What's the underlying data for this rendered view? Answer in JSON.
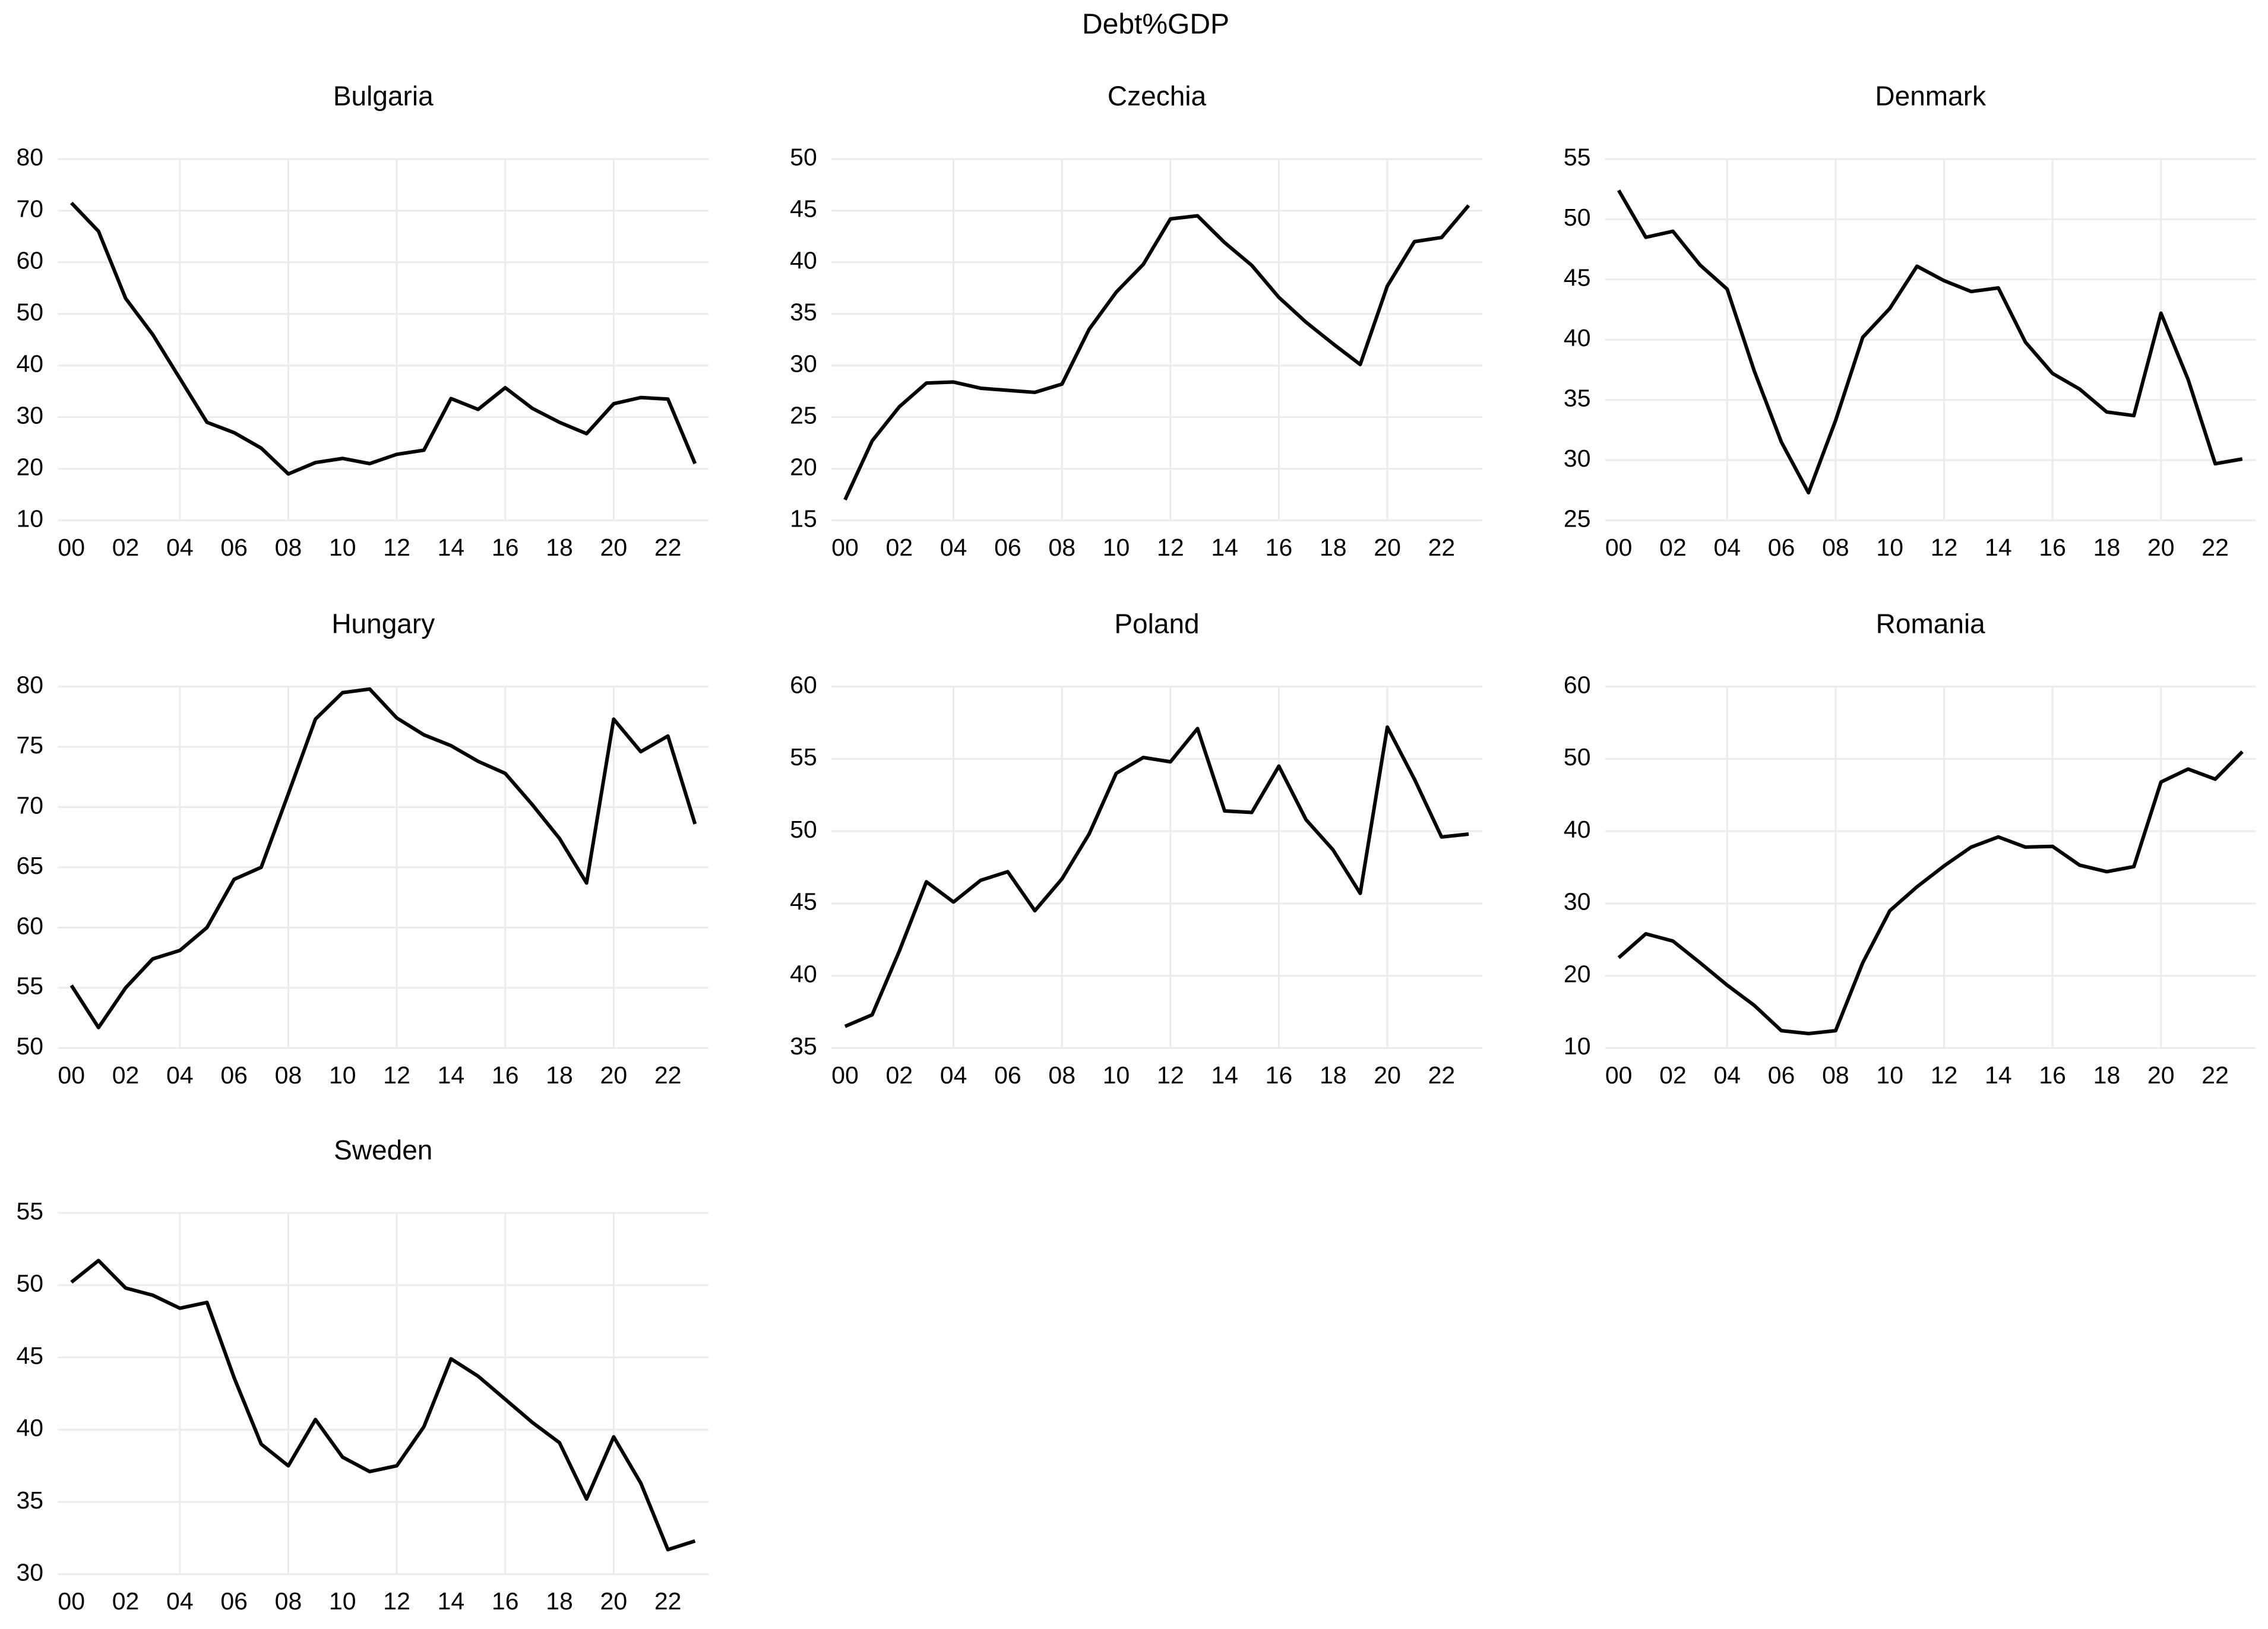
{
  "title": "Debt%GDP",
  "chart_data": [
    {
      "type": "line",
      "title": "Bulgaria",
      "color": "#000000",
      "grid": true,
      "x": [
        0,
        1,
        2,
        3,
        4,
        5,
        6,
        7,
        8,
        9,
        10,
        11,
        12,
        13,
        14,
        15,
        16,
        17,
        18,
        19,
        20,
        21,
        22,
        23
      ],
      "values": [
        71.5,
        66,
        53,
        46,
        37.5,
        29,
        27,
        24,
        19,
        21.2,
        22,
        21,
        22.8,
        23.6,
        33.6,
        31.5,
        35.7,
        31.7,
        29,
        26.8,
        32.6,
        33.8,
        33.5,
        21
      ],
      "xlim": [
        -0.5,
        23.5
      ],
      "xticks": [
        {
          "value": 0,
          "label": "00"
        },
        {
          "value": 2,
          "label": "02"
        },
        {
          "value": 4,
          "label": "04"
        },
        {
          "value": 6,
          "label": "06"
        },
        {
          "value": 8,
          "label": "08"
        },
        {
          "value": 10,
          "label": "10"
        },
        {
          "value": 12,
          "label": "12"
        },
        {
          "value": 14,
          "label": "14"
        },
        {
          "value": 16,
          "label": "16"
        },
        {
          "value": 18,
          "label": "18"
        },
        {
          "value": 20,
          "label": "20"
        },
        {
          "value": 22,
          "label": "22"
        }
      ],
      "ylim": [
        10,
        80
      ],
      "yticks": [
        10,
        20,
        30,
        40,
        50,
        60,
        70,
        80
      ]
    },
    {
      "type": "line",
      "title": "Czechia",
      "color": "#000000",
      "grid": true,
      "x": [
        0,
        1,
        2,
        3,
        4,
        5,
        6,
        7,
        8,
        9,
        10,
        11,
        12,
        13,
        14,
        15,
        16,
        17,
        18,
        19,
        20,
        21,
        22,
        23
      ],
      "values": [
        17,
        22.7,
        26,
        28.3,
        28.4,
        27.8,
        27.6,
        27.4,
        28.2,
        33.5,
        37.1,
        39.8,
        44.2,
        44.5,
        41.9,
        39.7,
        36.6,
        34.2,
        32.1,
        30.1,
        37.7,
        42,
        42.4,
        45.5
      ],
      "xlim": [
        -0.5,
        23.5
      ],
      "xticks": [
        {
          "value": 0,
          "label": "00"
        },
        {
          "value": 2,
          "label": "02"
        },
        {
          "value": 4,
          "label": "04"
        },
        {
          "value": 6,
          "label": "06"
        },
        {
          "value": 8,
          "label": "08"
        },
        {
          "value": 10,
          "label": "10"
        },
        {
          "value": 12,
          "label": "12"
        },
        {
          "value": 14,
          "label": "14"
        },
        {
          "value": 16,
          "label": "16"
        },
        {
          "value": 18,
          "label": "18"
        },
        {
          "value": 20,
          "label": "20"
        },
        {
          "value": 22,
          "label": "22"
        }
      ],
      "ylim": [
        15,
        50
      ],
      "yticks": [
        15,
        20,
        25,
        30,
        35,
        40,
        45,
        50
      ]
    },
    {
      "type": "line",
      "title": "Denmark",
      "color": "#000000",
      "grid": true,
      "x": [
        0,
        1,
        2,
        3,
        4,
        5,
        6,
        7,
        8,
        9,
        10,
        11,
        12,
        13,
        14,
        15,
        16,
        17,
        18,
        19,
        20,
        21,
        22,
        23
      ],
      "values": [
        52.4,
        48.5,
        49,
        46.2,
        44.2,
        37.4,
        31.5,
        27.3,
        33.3,
        40.2,
        42.6,
        46.1,
        44.9,
        44,
        44.3,
        39.8,
        37.2,
        35.9,
        34,
        33.7,
        42.2,
        36.7,
        29.7,
        30.1
      ],
      "xlim": [
        -0.5,
        23.5
      ],
      "xticks": [
        {
          "value": 0,
          "label": "00"
        },
        {
          "value": 2,
          "label": "02"
        },
        {
          "value": 4,
          "label": "04"
        },
        {
          "value": 6,
          "label": "06"
        },
        {
          "value": 8,
          "label": "08"
        },
        {
          "value": 10,
          "label": "10"
        },
        {
          "value": 12,
          "label": "12"
        },
        {
          "value": 14,
          "label": "14"
        },
        {
          "value": 16,
          "label": "16"
        },
        {
          "value": 18,
          "label": "18"
        },
        {
          "value": 20,
          "label": "20"
        },
        {
          "value": 22,
          "label": "22"
        }
      ],
      "ylim": [
        25,
        55
      ],
      "yticks": [
        25,
        30,
        35,
        40,
        45,
        50,
        55
      ]
    },
    {
      "type": "line",
      "title": "Hungary",
      "color": "#000000",
      "grid": true,
      "x": [
        0,
        1,
        2,
        3,
        4,
        5,
        6,
        7,
        8,
        9,
        10,
        11,
        12,
        13,
        14,
        15,
        16,
        17,
        18,
        19,
        20,
        21,
        22,
        23
      ],
      "values": [
        55.2,
        51.7,
        55,
        57.4,
        58.1,
        60,
        64,
        65,
        71.1,
        77.3,
        79.5,
        79.8,
        77.4,
        76,
        75.1,
        73.8,
        72.8,
        70.2,
        67.4,
        63.7,
        77.3,
        74.6,
        75.9,
        68.6
      ],
      "xlim": [
        -0.5,
        23.5
      ],
      "xticks": [
        {
          "value": 0,
          "label": "00"
        },
        {
          "value": 2,
          "label": "02"
        },
        {
          "value": 4,
          "label": "04"
        },
        {
          "value": 6,
          "label": "06"
        },
        {
          "value": 8,
          "label": "08"
        },
        {
          "value": 10,
          "label": "10"
        },
        {
          "value": 12,
          "label": "12"
        },
        {
          "value": 14,
          "label": "14"
        },
        {
          "value": 16,
          "label": "16"
        },
        {
          "value": 18,
          "label": "18"
        },
        {
          "value": 20,
          "label": "20"
        },
        {
          "value": 22,
          "label": "22"
        }
      ],
      "ylim": [
        50,
        80
      ],
      "yticks": [
        50,
        55,
        60,
        65,
        70,
        75,
        80
      ]
    },
    {
      "type": "line",
      "title": "Poland",
      "color": "#000000",
      "grid": true,
      "x": [
        0,
        1,
        2,
        3,
        4,
        5,
        6,
        7,
        8,
        9,
        10,
        11,
        12,
        13,
        14,
        15,
        16,
        17,
        18,
        19,
        20,
        21,
        22,
        23
      ],
      "values": [
        36.5,
        37.3,
        41.7,
        46.5,
        45.1,
        46.6,
        47.2,
        44.5,
        46.7,
        49.8,
        54,
        55.1,
        54.8,
        57.1,
        51.4,
        51.3,
        54.5,
        50.8,
        48.7,
        45.7,
        57.2,
        53.6,
        49.6,
        49.8
      ],
      "xlim": [
        -0.5,
        23.5
      ],
      "xticks": [
        {
          "value": 0,
          "label": "00"
        },
        {
          "value": 2,
          "label": "02"
        },
        {
          "value": 4,
          "label": "04"
        },
        {
          "value": 6,
          "label": "06"
        },
        {
          "value": 8,
          "label": "08"
        },
        {
          "value": 10,
          "label": "10"
        },
        {
          "value": 12,
          "label": "12"
        },
        {
          "value": 14,
          "label": "14"
        },
        {
          "value": 16,
          "label": "16"
        },
        {
          "value": 18,
          "label": "18"
        },
        {
          "value": 20,
          "label": "20"
        },
        {
          "value": 22,
          "label": "22"
        }
      ],
      "ylim": [
        35,
        60
      ],
      "yticks": [
        35,
        40,
        45,
        50,
        55,
        60
      ]
    },
    {
      "type": "line",
      "title": "Romania",
      "color": "#000000",
      "grid": true,
      "x": [
        0,
        1,
        2,
        3,
        4,
        5,
        6,
        7,
        8,
        9,
        10,
        11,
        12,
        13,
        14,
        15,
        16,
        17,
        18,
        19,
        20,
        21,
        22,
        23
      ],
      "values": [
        22.5,
        25.8,
        24.8,
        21.8,
        18.7,
        15.9,
        12.4,
        12,
        12.4,
        21.8,
        29,
        32.3,
        35.2,
        37.8,
        39.2,
        37.8,
        37.9,
        35.3,
        34.4,
        35.1,
        46.8,
        48.6,
        47.2,
        51
      ],
      "xlim": [
        -0.5,
        23.5
      ],
      "xticks": [
        {
          "value": 0,
          "label": "00"
        },
        {
          "value": 2,
          "label": "02"
        },
        {
          "value": 4,
          "label": "04"
        },
        {
          "value": 6,
          "label": "06"
        },
        {
          "value": 8,
          "label": "08"
        },
        {
          "value": 10,
          "label": "10"
        },
        {
          "value": 12,
          "label": "12"
        },
        {
          "value": 14,
          "label": "14"
        },
        {
          "value": 16,
          "label": "16"
        },
        {
          "value": 18,
          "label": "18"
        },
        {
          "value": 20,
          "label": "20"
        },
        {
          "value": 22,
          "label": "22"
        }
      ],
      "ylim": [
        10,
        60
      ],
      "yticks": [
        10,
        20,
        30,
        40,
        50,
        60
      ]
    },
    {
      "type": "line",
      "title": "Sweden",
      "color": "#000000",
      "grid": true,
      "x": [
        0,
        1,
        2,
        3,
        4,
        5,
        6,
        7,
        8,
        9,
        10,
        11,
        12,
        13,
        14,
        15,
        16,
        17,
        18,
        19,
        20,
        21,
        22,
        23
      ],
      "values": [
        50.2,
        51.7,
        49.8,
        49.3,
        48.4,
        48.8,
        43.6,
        39,
        37.5,
        40.7,
        38.1,
        37.1,
        37.5,
        40.2,
        44.9,
        43.7,
        42.1,
        40.5,
        39.1,
        35.2,
        39.5,
        36.3,
        31.7,
        32.3
      ],
      "xlim": [
        -0.5,
        23.5
      ],
      "xticks": [
        {
          "value": 0,
          "label": "00"
        },
        {
          "value": 2,
          "label": "02"
        },
        {
          "value": 4,
          "label": "04"
        },
        {
          "value": 6,
          "label": "06"
        },
        {
          "value": 8,
          "label": "08"
        },
        {
          "value": 10,
          "label": "10"
        },
        {
          "value": 12,
          "label": "12"
        },
        {
          "value": 14,
          "label": "14"
        },
        {
          "value": 16,
          "label": "16"
        },
        {
          "value": 18,
          "label": "18"
        },
        {
          "value": 20,
          "label": "20"
        },
        {
          "value": 22,
          "label": "22"
        }
      ],
      "ylim": [
        30,
        55
      ],
      "yticks": [
        30,
        35,
        40,
        45,
        50,
        55
      ]
    }
  ]
}
